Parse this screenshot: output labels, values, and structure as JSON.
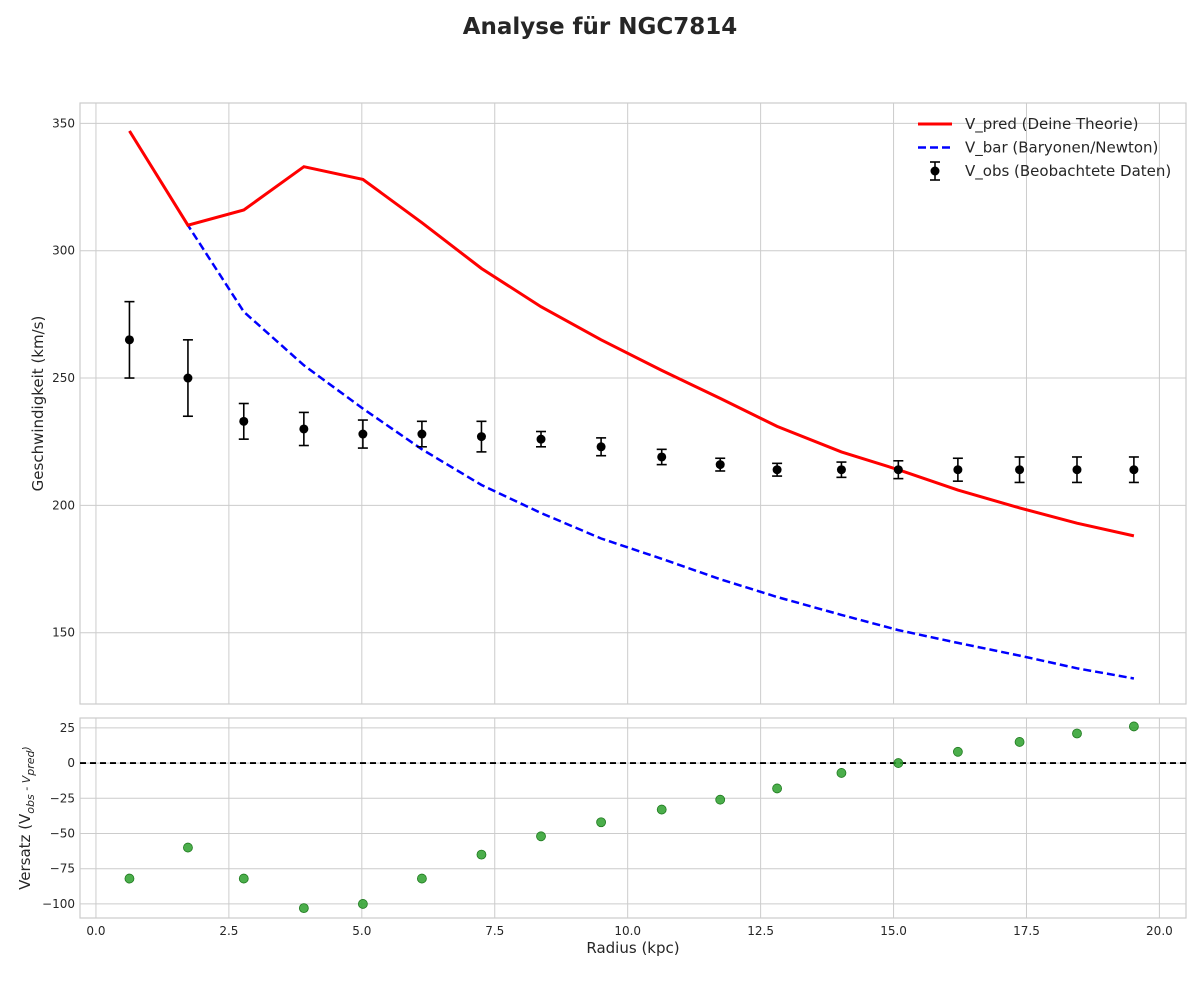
{
  "title": "Analyse für NGC7814",
  "colors": {
    "pred": "#ff0000",
    "bar": "#0000ff",
    "obs": "#000000",
    "residual": "#2ca02c",
    "grid": "#cccccc",
    "frame": "#cccccc"
  },
  "chart_data": [
    {
      "type": "line",
      "panel": "main",
      "xlabel": "",
      "ylabel": "Geschwindigkeit (km/s)",
      "xlim": [
        -0.3,
        20.5
      ],
      "ylim": [
        122,
        358
      ],
      "xticks": [
        0.0,
        2.5,
        5.0,
        7.5,
        10.0,
        12.5,
        15.0,
        17.5,
        20.0
      ],
      "xtick_labels": [
        "0.0",
        "2.5",
        "5.0",
        "7.5",
        "10.0",
        "12.5",
        "15.0",
        "17.5",
        "20.0"
      ],
      "yticks": [
        150,
        200,
        250,
        300,
        350
      ],
      "ytick_labels": [
        "150",
        "200",
        "250",
        "300",
        "350"
      ],
      "grid": true,
      "legend_position": "top-right",
      "x": [
        0.63,
        1.73,
        2.78,
        3.91,
        5.02,
        6.13,
        7.25,
        8.37,
        9.5,
        10.64,
        11.74,
        12.81,
        14.02,
        15.09,
        16.21,
        17.37,
        18.45,
        19.52
      ],
      "series": [
        {
          "name": "V_pred (Deine Theorie)",
          "style": "solid",
          "color": "#ff0000",
          "values": [
            347,
            310,
            316,
            333,
            328,
            311,
            293,
            278,
            265,
            253,
            242,
            231,
            221,
            214,
            206,
            199,
            193,
            188
          ]
        },
        {
          "name": "V_bar (Baryonen/Newton)",
          "style": "dashed",
          "color": "#0000ff",
          "values": [
            347,
            310,
            276,
            255,
            238,
            222,
            208,
            197,
            187,
            179,
            171,
            164,
            157,
            151,
            146,
            141,
            136,
            132
          ]
        },
        {
          "name": "V_obs (Beobachtete Daten)",
          "style": "errorbar",
          "color": "#000000",
          "values": [
            265,
            250,
            233,
            230,
            228,
            228,
            227,
            226,
            223,
            219,
            216,
            214,
            214,
            214,
            214,
            214,
            214,
            214
          ],
          "errors": [
            15,
            15,
            7,
            6.5,
            5.5,
            5,
            6,
            3,
            3.5,
            3,
            2.5,
            2.5,
            3,
            3.5,
            4.5,
            5,
            5,
            5
          ]
        }
      ]
    },
    {
      "type": "scatter",
      "panel": "residual",
      "xlabel": "Radius (kpc)",
      "ylabel_main": "Versatz (V",
      "ylabel_sub1": "obs",
      "ylabel_mid": " - V",
      "ylabel_sub2": "pred",
      "ylabel_end": ")",
      "xlim": [
        -0.3,
        20.5
      ],
      "ylim": [
        -110,
        32
      ],
      "xticks": [
        0.0,
        2.5,
        5.0,
        7.5,
        10.0,
        12.5,
        15.0,
        17.5,
        20.0
      ],
      "xtick_labels": [
        "0.0",
        "2.5",
        "5.0",
        "7.5",
        "10.0",
        "12.5",
        "15.0",
        "17.5",
        "20.0"
      ],
      "yticks": [
        25,
        0,
        -25,
        -50,
        -75,
        -100
      ],
      "ytick_labels": [
        "25",
        "0",
        "−25",
        "−50",
        "−75",
        "−100"
      ],
      "reference_line": 0,
      "grid": true,
      "x": [
        0.63,
        1.73,
        2.78,
        3.91,
        5.02,
        6.13,
        7.25,
        8.37,
        9.5,
        10.64,
        11.74,
        12.81,
        14.02,
        15.09,
        16.21,
        17.37,
        18.45,
        19.52
      ],
      "values": [
        -82,
        -60,
        -82,
        -103,
        -100,
        -82,
        -65,
        -52,
        -42,
        -33,
        -26,
        -18,
        -7,
        0,
        8,
        15,
        21,
        26
      ]
    }
  ]
}
